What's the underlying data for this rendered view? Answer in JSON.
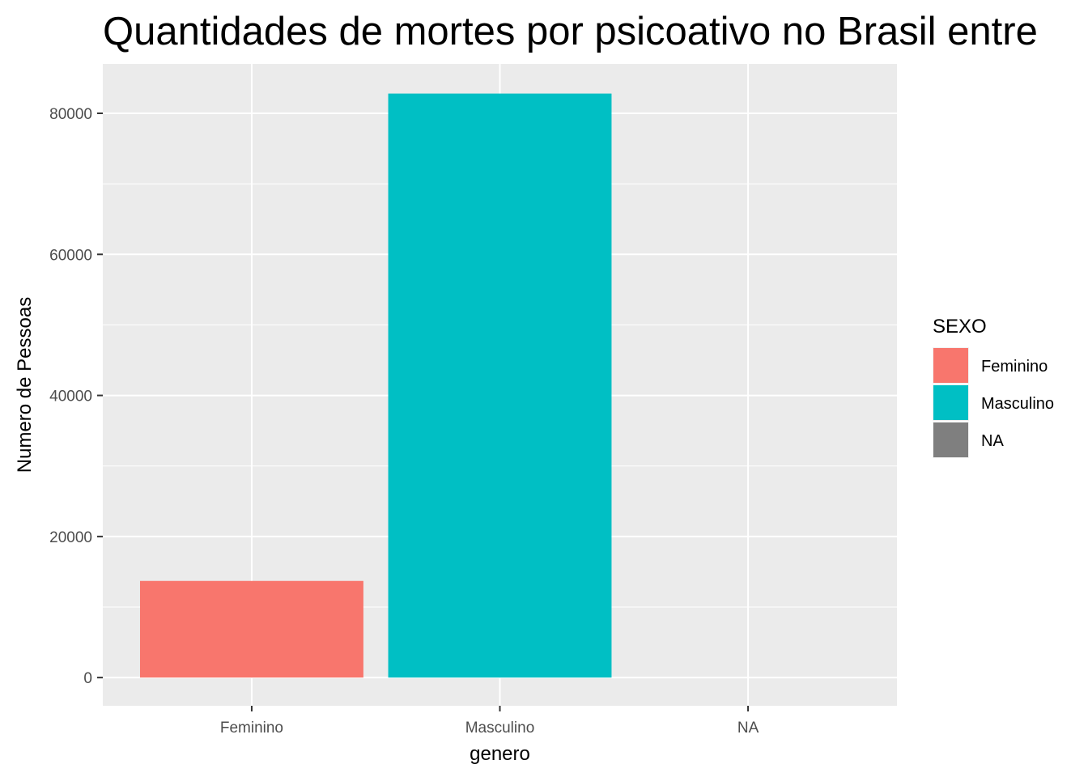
{
  "chart_data": {
    "type": "bar",
    "title": "Quantidades de mortes por psicoativo no Brasil entre",
    "xlabel": "genero",
    "ylabel": "Numero de Pessoas",
    "categories": [
      "Feminino",
      "Masculino",
      "NA"
    ],
    "values": [
      13700,
      82800,
      0
    ],
    "ylim": [
      -4000,
      87000
    ],
    "yticks": [
      0,
      20000,
      40000,
      60000,
      80000
    ],
    "ytick_labels": [
      "0",
      "20000",
      "40000",
      "60000",
      "80000"
    ],
    "grid": true,
    "legend": {
      "title": "SEXO",
      "placement": "right",
      "entries": [
        {
          "label": "Feminino",
          "color": "#F8766D"
        },
        {
          "label": "Masculino",
          "color": "#00BFC4"
        },
        {
          "label": "NA",
          "color": "#7F7F7F"
        }
      ]
    },
    "colors": {
      "panel": "#EBEBEB",
      "grid": "#FFFFFF"
    }
  }
}
